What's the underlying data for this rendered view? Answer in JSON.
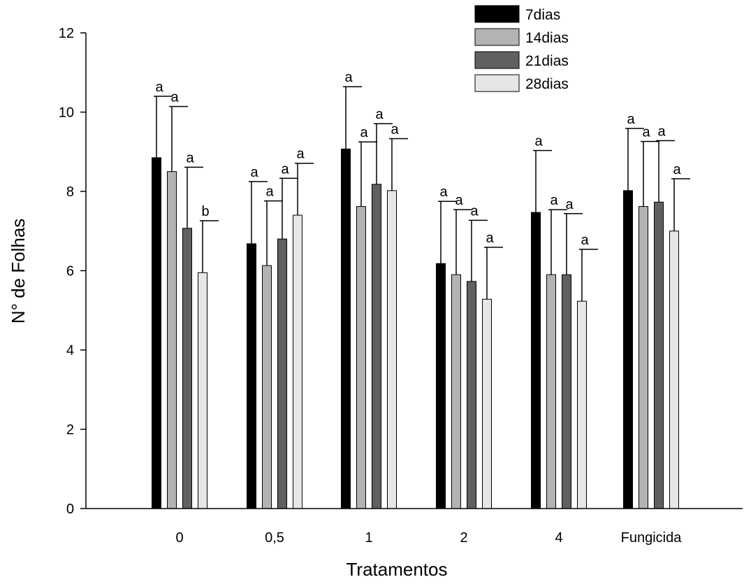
{
  "chart_data": {
    "type": "bar",
    "xlabel": "Tratamentos",
    "ylabel": "N° de Folhas",
    "ylim": [
      0,
      12
    ],
    "yticks": [
      0,
      2,
      4,
      6,
      8,
      10,
      12
    ],
    "grid": false,
    "legend_position": "top-right",
    "error_bars": true,
    "categories": [
      "0",
      "0,5",
      "1",
      "2",
      "4",
      "Fungicida"
    ],
    "series": [
      {
        "name": "7dias",
        "color": "#000000",
        "values": [
          8.85,
          6.68,
          9.07,
          6.18,
          7.47,
          8.02
        ],
        "errors": [
          1.55,
          1.57,
          1.57,
          1.57,
          1.56,
          1.57
        ],
        "letters": [
          "a",
          "a",
          "a",
          "a",
          "a",
          "a"
        ]
      },
      {
        "name": "14dias",
        "color": "#b3b3b3",
        "values": [
          8.5,
          6.13,
          7.62,
          5.9,
          5.9,
          7.62
        ],
        "errors": [
          1.64,
          1.63,
          1.63,
          1.64,
          1.64,
          1.64
        ],
        "letters": [
          "a",
          "a",
          "a",
          "a",
          "a",
          "a"
        ]
      },
      {
        "name": "21dias",
        "color": "#606060",
        "values": [
          7.07,
          6.8,
          8.18,
          5.73,
          5.9,
          7.73
        ],
        "errors": [
          1.54,
          1.53,
          1.53,
          1.54,
          1.54,
          1.55
        ],
        "letters": [
          "a",
          "a",
          "a",
          "a",
          "a",
          "a"
        ]
      },
      {
        "name": "28dias",
        "color": "#e6e6e6",
        "values": [
          5.95,
          7.4,
          8.02,
          5.28,
          5.23,
          7.0
        ],
        "errors": [
          1.31,
          1.31,
          1.31,
          1.31,
          1.31,
          1.32
        ],
        "letters": [
          "b",
          "a",
          "a",
          "a",
          "a",
          "a"
        ]
      }
    ]
  }
}
